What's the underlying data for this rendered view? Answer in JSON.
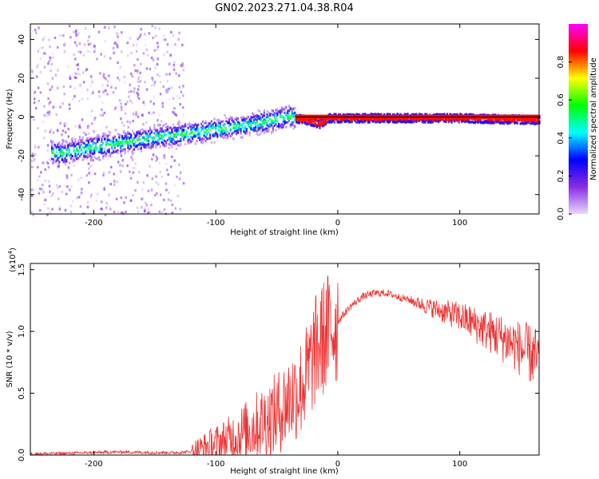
{
  "title": "GN02.2023.271.04.38.R04",
  "chart_data": [
    {
      "type": "heatmap",
      "xlabel": "Height of straight line (km)",
      "ylabel": "Frequency (Hz)",
      "xlim": [
        -252,
        165
      ],
      "ylim": [
        -50,
        48
      ],
      "xticks": [
        -200,
        -100,
        0,
        100
      ],
      "yticks": [
        -40,
        -20,
        0,
        20,
        40
      ],
      "ridge_frequency_hz": [
        [
          -225,
          -18
        ],
        [
          -200,
          -15
        ],
        [
          -150,
          -10
        ],
        [
          -100,
          -6
        ],
        [
          -60,
          -2
        ],
        [
          -40,
          1
        ],
        [
          -35,
          0
        ],
        [
          -20,
          -2
        ],
        [
          -15,
          -3
        ],
        [
          -8,
          0
        ],
        [
          0,
          0
        ],
        [
          60,
          0
        ],
        [
          100,
          0
        ],
        [
          165,
          -1
        ]
      ],
      "colorbar": {
        "label": "Normalized spectral amplitude",
        "range": [
          0,
          1
        ],
        "ticks": [
          "0.0",
          "0.2",
          "0.4",
          "0.6",
          "0.8"
        ],
        "colors": [
          "#e6d8ff",
          "#8a2be2",
          "#0000ff",
          "#00ffff",
          "#00ff00",
          "#ffff00",
          "#ff0000",
          "#ff00ff"
        ]
      }
    },
    {
      "type": "line",
      "xlabel": "Height of straight line (km)",
      "ylabel": "SNR (10 * v/v)",
      "exponent_label": "(x10",
      "exponent_sup": "4",
      "exponent_close": ")",
      "xlim": [
        -252,
        165
      ],
      "ylim": [
        0,
        1.55
      ],
      "xticks": [
        -200,
        -100,
        0,
        100
      ],
      "yticks": [
        "0.0",
        "0.5",
        "1.0",
        "1.5"
      ],
      "series": [
        {
          "color": "#ee3333",
          "x": [
            -252,
            -220,
            -200,
            -180,
            -150,
            -130,
            -120,
            -110,
            -100,
            -90,
            -80,
            -70,
            -60,
            -50,
            -40,
            -30,
            -25,
            -20,
            -15,
            -10,
            -5,
            0,
            10,
            20,
            30,
            40,
            50,
            60,
            80,
            100,
            120,
            140,
            150,
            160,
            165
          ],
          "y": [
            0.01,
            0.015,
            0.02,
            0.025,
            0.02,
            0.02,
            0.03,
            0.06,
            0.09,
            0.12,
            0.17,
            0.22,
            0.28,
            0.33,
            0.45,
            0.55,
            0.65,
            0.8,
            0.9,
            0.97,
            1.03,
            1.08,
            1.2,
            1.28,
            1.31,
            1.31,
            1.28,
            1.25,
            1.18,
            1.12,
            1.02,
            0.92,
            0.86,
            0.8,
            0.76
          ]
        }
      ]
    }
  ]
}
